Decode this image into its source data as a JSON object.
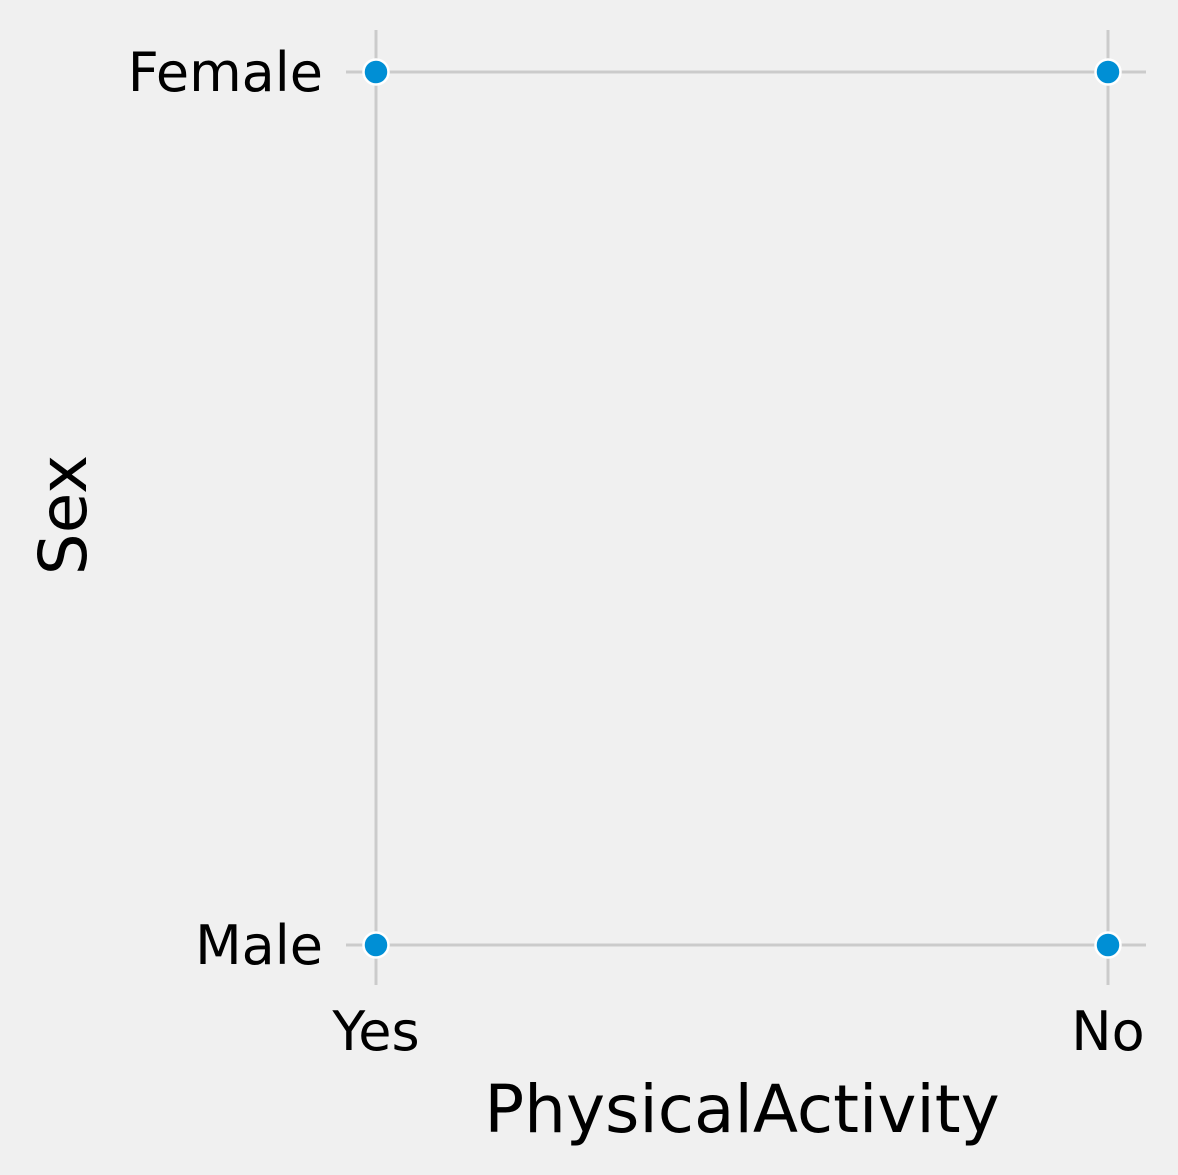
{
  "chart_data": {
    "type": "scatter",
    "xlabel": "PhysicalActivity",
    "ylabel": "Sex",
    "x_categories": [
      "Yes",
      "No"
    ],
    "y_categories": [
      "Male",
      "Female"
    ],
    "points": [
      {
        "x": "Yes",
        "y": "Female"
      },
      {
        "x": "No",
        "y": "Female"
      },
      {
        "x": "Yes",
        "y": "Male"
      },
      {
        "x": "No",
        "y": "Male"
      }
    ],
    "grid": true,
    "colors": {
      "point": "#008fd5",
      "background": "#f0f0f0",
      "grid": "#cbcbcb"
    }
  }
}
